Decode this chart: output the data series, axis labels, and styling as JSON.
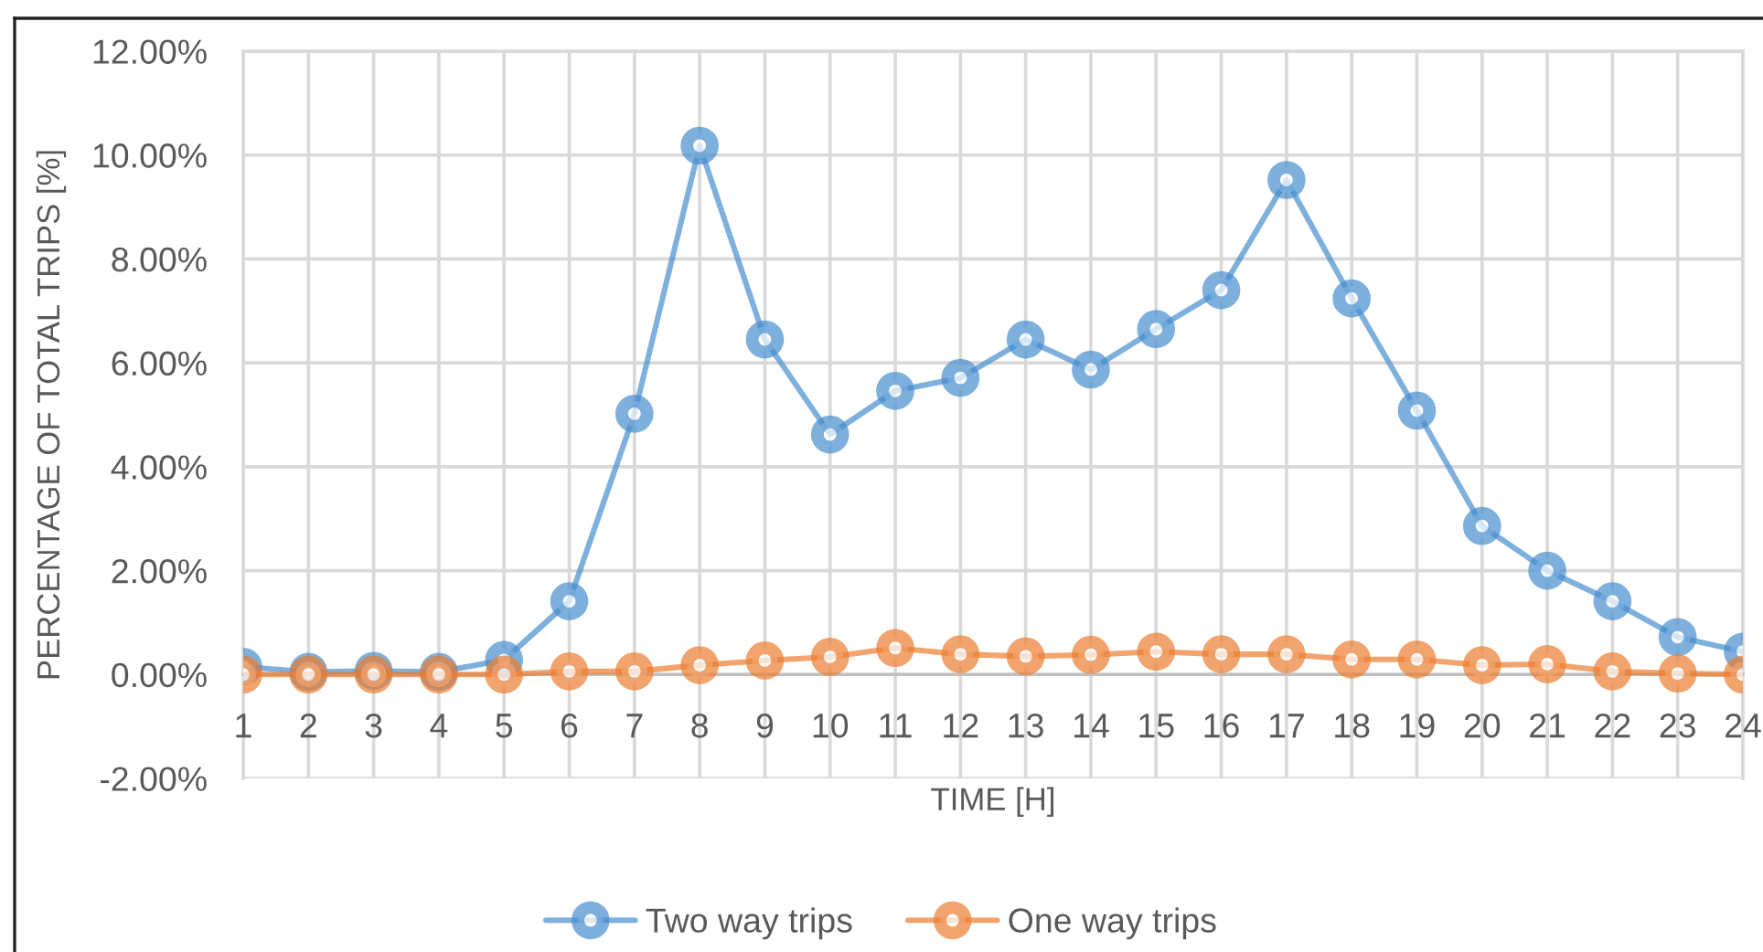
{
  "chart_data": {
    "type": "line",
    "xlabel": "TIME [H]",
    "ylabel": "PERCENTAGE OF TOTAL TRIPS [%]",
    "categories": [
      "1",
      "2",
      "3",
      "4",
      "5",
      "6",
      "7",
      "8",
      "9",
      "10",
      "11",
      "12",
      "13",
      "14",
      "15",
      "16",
      "17",
      "18",
      "19",
      "20",
      "21",
      "22",
      "23",
      "24"
    ],
    "series": [
      {
        "name": "Two way trips",
        "color": "#7eb0dd",
        "values": [
          0.15,
          0.05,
          0.07,
          0.05,
          0.28,
          1.41,
          5.02,
          10.18,
          6.45,
          4.62,
          5.46,
          5.71,
          6.45,
          5.87,
          6.65,
          7.4,
          9.52,
          7.24,
          5.08,
          2.86,
          2.0,
          1.41,
          0.72,
          0.44
        ]
      },
      {
        "name": "One way trips",
        "color": "#f2a46e",
        "values": [
          0.0,
          0.0,
          0.0,
          0.0,
          0.0,
          0.06,
          0.06,
          0.18,
          0.27,
          0.34,
          0.51,
          0.39,
          0.35,
          0.38,
          0.44,
          0.39,
          0.39,
          0.29,
          0.29,
          0.18,
          0.2,
          0.06,
          0.02,
          0.0
        ]
      }
    ],
    "ylim": [
      -2,
      12
    ],
    "yticks": [
      {
        "value": -2,
        "label": "-2.00%"
      },
      {
        "value": 0,
        "label": "0.00%"
      },
      {
        "value": 2,
        "label": "2.00%"
      },
      {
        "value": 4,
        "label": "4.00%"
      },
      {
        "value": 6,
        "label": "6.00%"
      },
      {
        "value": 8,
        "label": "8.00%"
      },
      {
        "value": 10,
        "label": "10.00%"
      },
      {
        "value": 12,
        "label": "12.00%"
      }
    ],
    "grid": true,
    "legend": "bottom",
    "marker": "circle",
    "line_style": "solid"
  }
}
